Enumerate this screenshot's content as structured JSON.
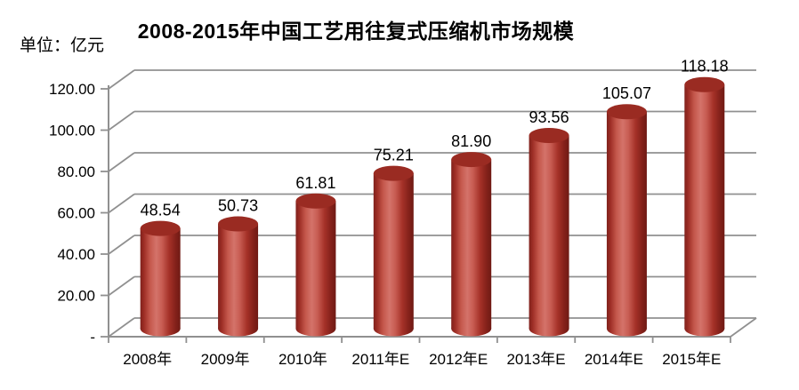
{
  "header": {
    "title": "2008-2015年中国工艺用往复式压缩机市场规模",
    "unit_label": "单位：亿元"
  },
  "chart_data": {
    "type": "bar",
    "subtype": "3d-cylinder",
    "title": "2008-2015年中国工艺用往复式压缩机市场规模",
    "unit": "亿元",
    "categories": [
      "2008年",
      "2009年",
      "2010年",
      "2011年E",
      "2012年E",
      "2013年E",
      "2014年E",
      "2015年E"
    ],
    "values": [
      48.54,
      50.73,
      61.81,
      75.21,
      81.9,
      93.56,
      105.07,
      118.18
    ],
    "data_labels": [
      "48.54",
      "50.73",
      "61.81",
      "75.21",
      "81.90",
      "93.56",
      "105.07",
      "118.18"
    ],
    "xlabel": "",
    "ylabel": "单位：亿元",
    "ylim": [
      0,
      120
    ],
    "ytick_interval": 20,
    "ytick_labels_bottom_up": [
      "-",
      "20.00",
      "40.00",
      "60.00",
      "80.00",
      "100.00",
      "120.00"
    ],
    "grid": true,
    "legend": "none",
    "colors": {
      "background": "#ffffff",
      "text": "#000000",
      "grid": "#909090",
      "bar_top": "#9a2b22",
      "bar_gradient": [
        {
          "offset": 0.0,
          "color": "#7f211c"
        },
        {
          "offset": 0.09,
          "color": "#9d2d25"
        },
        {
          "offset": 0.24,
          "color": "#c4574b"
        },
        {
          "offset": 0.4,
          "color": "#d4736a"
        },
        {
          "offset": 0.54,
          "color": "#c85d53"
        },
        {
          "offset": 0.72,
          "color": "#a53128"
        },
        {
          "offset": 0.88,
          "color": "#84211a"
        },
        {
          "offset": 1.0,
          "color": "#6f1a14"
        }
      ]
    }
  }
}
